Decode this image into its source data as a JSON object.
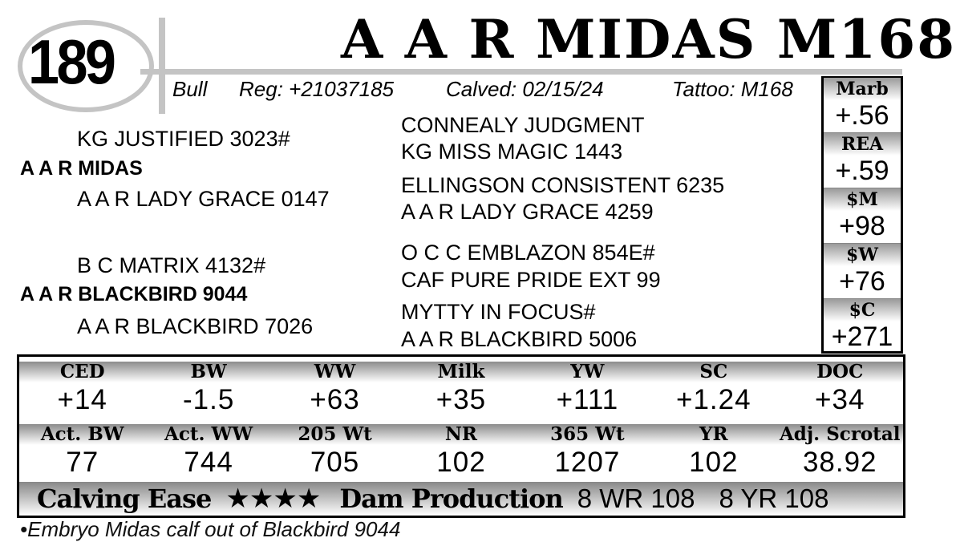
{
  "lot": "189",
  "name": "A A R MIDAS M168",
  "info": {
    "sex": "Bull",
    "reg": "Reg: +21037185",
    "calved": "Calved: 02/15/24",
    "tattoo": "Tattoo: M168"
  },
  "pedigree": {
    "sire": "A A R MIDAS",
    "sire_sire": "KG JUSTIFIED 3023#",
    "sire_dam": "A A R LADY GRACE 0147",
    "ss_sire": "CONNEALY JUDGMENT",
    "ss_dam": "KG MISS MAGIC 1443",
    "sd_sire": "ELLINGSON CONSISTENT 6235",
    "sd_dam": "A A R LADY GRACE 4259",
    "dam": "A A R BLACKBIRD 9044",
    "dam_sire": "B C MATRIX 4132#",
    "dam_dam": "A A R BLACKBIRD 7026",
    "ds_sire": "O C C EMBLAZON 854E#",
    "ds_dam": "CAF PURE PRIDE EXT 99",
    "dd_sire": "MYTTY IN FOCUS#",
    "dd_dam": "A A R BLACKBIRD 5006"
  },
  "side": [
    {
      "label": "Marb",
      "value": "+.56"
    },
    {
      "label": "REA",
      "value": "+.59"
    },
    {
      "label": "$M",
      "value": "+98"
    },
    {
      "label": "$W",
      "value": "+76"
    },
    {
      "label": "$C",
      "value": "+271"
    }
  ],
  "epd1": [
    {
      "label": "CED",
      "value": "+14"
    },
    {
      "label": "BW",
      "value": "-1.5"
    },
    {
      "label": "WW",
      "value": "+63"
    },
    {
      "label": "Milk",
      "value": "+35"
    },
    {
      "label": "YW",
      "value": "+111"
    },
    {
      "label": "SC",
      "value": "+1.24"
    },
    {
      "label": "DOC",
      "value": "+34"
    }
  ],
  "epd2": [
    {
      "label": "Act. BW",
      "value": "77"
    },
    {
      "label": "Act. WW",
      "value": "744"
    },
    {
      "label": "205 Wt",
      "value": "705"
    },
    {
      "label": "NR",
      "value": "102"
    },
    {
      "label": "365 Wt",
      "value": "1207"
    },
    {
      "label": "YR",
      "value": "102"
    },
    {
      "label": "Adj. Scrotal",
      "value": "38.92"
    }
  ],
  "bottom": {
    "calving_label": "Calving Ease",
    "stars": "★★★★",
    "calving_stars_count": 4,
    "dam_prod_label": "Dam Production",
    "wr": "8 WR 108",
    "yr": "8 YR 108"
  },
  "footnote": "•Embryo Midas calf out of Blackbird 9044"
}
